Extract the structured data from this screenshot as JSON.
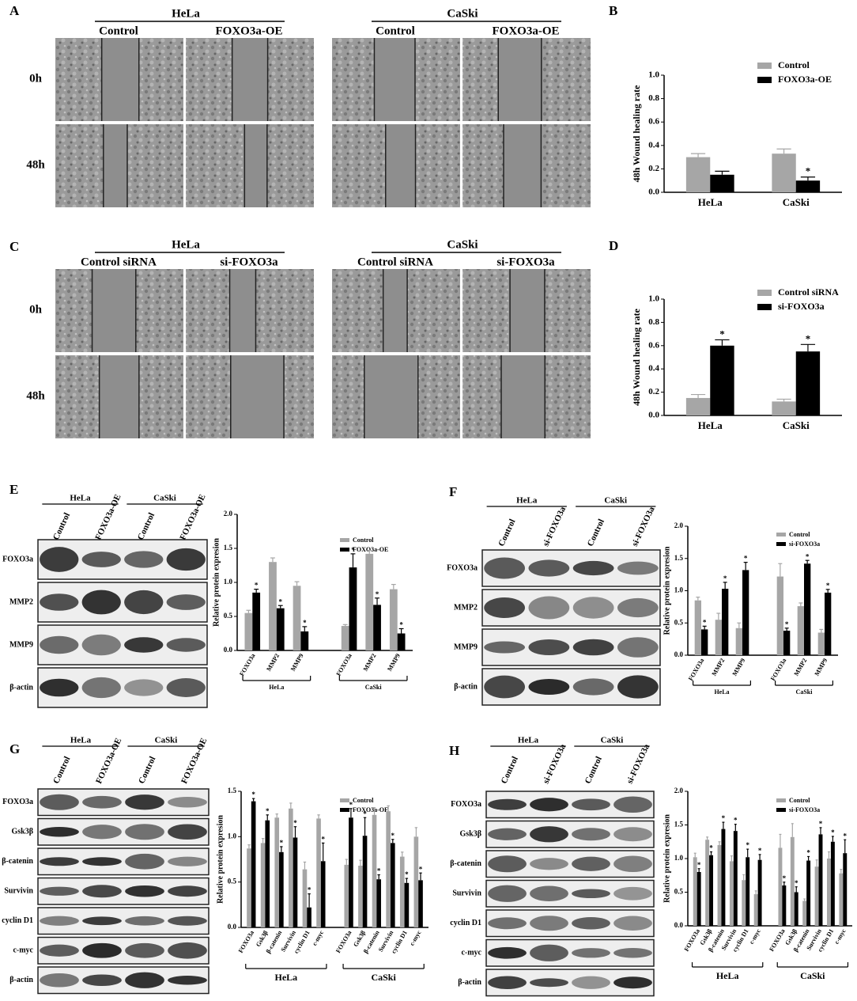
{
  "wound": [
    {
      "letter": "A",
      "rows": [
        "0h",
        "48h"
      ],
      "groups": [
        {
          "name": "HeLa",
          "conditions": [
            "Control",
            "FOXO3a-OE"
          ]
        },
        {
          "name": "CaSki",
          "conditions": [
            "Control",
            "FOXO3a-OE"
          ]
        }
      ]
    },
    {
      "letter": "C",
      "rows": [
        "0h",
        "48h"
      ],
      "groups": [
        {
          "name": "HeLa",
          "conditions": [
            "Control siRNA",
            "si-FOXO3a"
          ]
        },
        {
          "name": "CaSki",
          "conditions": [
            "Control siRNA",
            "si-FOXO3a"
          ]
        }
      ]
    }
  ],
  "blots": [
    {
      "letter": "E",
      "groups": [
        "HeLa",
        "CaSki"
      ],
      "lanes": [
        "Control",
        "FOXO3a-OE",
        "Control",
        "FOXO3a-OE"
      ],
      "rows": [
        "FOXO3a",
        "MMP2",
        "MMP9",
        "β-actin"
      ]
    },
    {
      "letter": "F",
      "groups": [
        "HeLa",
        "CaSki"
      ],
      "lanes": [
        "Control",
        "si-FOXO3a",
        "Control",
        "si-FOXO3a"
      ],
      "rows": [
        "FOXO3a",
        "MMP2",
        "MMP9",
        "β-actin"
      ]
    },
    {
      "letter": "G",
      "groups": [
        "HeLa",
        "CaSki"
      ],
      "lanes": [
        "Control",
        "FOXO3a-OE",
        "Control",
        "FOXO3a-OE"
      ],
      "rows": [
        "FOXO3a",
        "Gsk3β",
        "β-catenin",
        "Survivin",
        "cyclin D1",
        "c-myc",
        "β-actin"
      ]
    },
    {
      "letter": "H",
      "groups": [
        "HeLa",
        "CaSki"
      ],
      "lanes": [
        "Control",
        "si-FOXO3a",
        "Control",
        "si-FOXO3a"
      ],
      "rows": [
        "FOXO3a",
        "Gsk3β",
        "β-catenin",
        "Survivin",
        "cyclin D1",
        "c-myc",
        "β-actin"
      ]
    }
  ],
  "chart_data": [
    {
      "type": "bar",
      "panel": "B",
      "ylabel": "48h Wound healing rate",
      "categories": [
        "HeLa",
        "CaSki"
      ],
      "ylim": [
        0,
        1
      ],
      "yticks": [
        {
          "value": 0,
          "label": "0.0"
        },
        {
          "value": 0.2,
          "label": "0.2"
        },
        {
          "value": 0.4,
          "label": "0.4"
        },
        {
          "value": 0.6,
          "label": "0.6"
        },
        {
          "value": 0.8,
          "label": "0.8"
        },
        {
          "value": 1,
          "label": "1.0"
        }
      ],
      "series": [
        {
          "name": "Control",
          "color": "#a6a6a6",
          "values": [
            0.3,
            0.33
          ],
          "errors": [
            0.03,
            0.04
          ],
          "sig": [
            null,
            null
          ]
        },
        {
          "name": "FOXO3a-OE",
          "color": "#000000",
          "values": [
            0.15,
            0.1
          ],
          "errors": [
            0.03,
            0.03
          ],
          "sig": [
            null,
            "*"
          ]
        }
      ]
    },
    {
      "type": "bar",
      "panel": "D",
      "ylabel": "48h Wound healing rate",
      "categories": [
        "HeLa",
        "CaSki"
      ],
      "ylim": [
        0,
        1
      ],
      "yticks": [
        {
          "value": 0,
          "label": "0.0"
        },
        {
          "value": 0.2,
          "label": "0.2"
        },
        {
          "value": 0.4,
          "label": "0.4"
        },
        {
          "value": 0.6,
          "label": "0.6"
        },
        {
          "value": 0.8,
          "label": "0.8"
        },
        {
          "value": 1,
          "label": "1.0"
        }
      ],
      "series": [
        {
          "name": "Control siRNA",
          "color": "#a6a6a6",
          "values": [
            0.15,
            0.12
          ],
          "errors": [
            0.03,
            0.02
          ],
          "sig": [
            null,
            null
          ]
        },
        {
          "name": "si-FOXO3a",
          "color": "#000000",
          "values": [
            0.6,
            0.55
          ],
          "errors": [
            0.05,
            0.06
          ],
          "sig": [
            "*",
            "*"
          ]
        }
      ]
    },
    {
      "type": "bar",
      "ylabel": "Relative protein expresion",
      "groups": [
        "HeLa",
        "CaSki"
      ],
      "categories": [
        "FOXO3a",
        "MMP2",
        "MMP9",
        "FOXO3a",
        "MMP2",
        "MMP9"
      ],
      "ylim": [
        0,
        2
      ],
      "yticks": [
        {
          "value": 0,
          "label": "0.0"
        },
        {
          "value": 0.5,
          "label": "0.5"
        },
        {
          "value": 1,
          "label": "1.0"
        },
        {
          "value": 1.5,
          "label": "1.5"
        },
        {
          "value": 2,
          "label": "2.0"
        }
      ],
      "series": [
        {
          "name": "Control",
          "color": "#a6a6a6",
          "values": [
            0.55,
            1.3,
            0.95,
            0.36,
            1.42,
            0.9
          ],
          "errors": [
            0.04,
            0.06,
            0.06,
            0.02,
            0.05,
            0.07
          ],
          "sig": [
            null,
            null,
            null,
            null,
            null,
            null
          ]
        },
        {
          "name": "FOXO3a-OE",
          "color": "#000000",
          "values": [
            0.85,
            0.62,
            0.28,
            1.22,
            0.67,
            0.25
          ],
          "errors": [
            0.05,
            0.04,
            0.07,
            0.2,
            0.1,
            0.07
          ],
          "sig": [
            "*",
            "*",
            "*",
            "*",
            "*",
            "*"
          ]
        }
      ]
    },
    {
      "type": "bar",
      "ylabel": "Relative protein expresion",
      "groups": [
        "HeLa",
        "CaSki"
      ],
      "categories": [
        "FOXO3a",
        "MMP2",
        "MMP9",
        "FOXO3a",
        "MMP2",
        "MMP9"
      ],
      "ylim": [
        0,
        2
      ],
      "yticks": [
        {
          "value": 0,
          "label": "0.0"
        },
        {
          "value": 0.5,
          "label": "0.5"
        },
        {
          "value": 1,
          "label": "1.0"
        },
        {
          "value": 1.5,
          "label": "1.5"
        },
        {
          "value": 2,
          "label": "2.0"
        }
      ],
      "series": [
        {
          "name": "Control",
          "color": "#a6a6a6",
          "values": [
            0.85,
            0.55,
            0.42,
            1.22,
            0.76,
            0.35
          ],
          "errors": [
            0.05,
            0.1,
            0.08,
            0.2,
            0.05,
            0.05
          ],
          "sig": [
            null,
            null,
            null,
            null,
            null,
            null
          ]
        },
        {
          "name": "si-FOXO3a",
          "color": "#000000",
          "values": [
            0.4,
            1.03,
            1.32,
            0.38,
            1.42,
            0.97
          ],
          "errors": [
            0.05,
            0.1,
            0.12,
            0.04,
            0.05,
            0.05
          ],
          "sig": [
            "*",
            "*",
            "*",
            "*",
            "*",
            "*"
          ]
        }
      ]
    },
    {
      "type": "bar",
      "ylabel": "Relative protein expresion",
      "groups": [
        "HeLa",
        "CaSki"
      ],
      "categories": [
        "FOXO3a",
        "Gsk3β",
        "β-catenin",
        "Survivin",
        "cyclin D1",
        "c-myc",
        "FOXO3a",
        "Gsk3β",
        "β-catenin",
        "Survivin",
        "cyclin D1",
        "c-myc"
      ],
      "ylim": [
        0,
        1.5
      ],
      "yticks": [
        {
          "value": 0,
          "label": "0.0"
        },
        {
          "value": 0.5,
          "label": "0.5"
        },
        {
          "value": 1,
          "label": "1.0"
        },
        {
          "value": 1.5,
          "label": "1.5"
        }
      ],
      "series": [
        {
          "name": "Control",
          "color": "#a6a6a6",
          "values": [
            0.87,
            0.93,
            1.21,
            1.31,
            0.64,
            1.2,
            0.69,
            0.68,
            1.24,
            1.28,
            0.78,
            1.0
          ],
          "errors": [
            0.04,
            0.05,
            0.04,
            0.06,
            0.08,
            0.04,
            0.06,
            0.06,
            0.08,
            0.06,
            0.05,
            0.1
          ],
          "sig": [
            null,
            null,
            null,
            null,
            null,
            null,
            null,
            null,
            null,
            null,
            null,
            null
          ]
        },
        {
          "name": "FOXO3a-OE",
          "color": "#000000",
          "values": [
            1.39,
            1.18,
            0.83,
            0.99,
            0.22,
            0.73,
            1.21,
            1.01,
            0.53,
            0.93,
            0.49,
            0.52
          ],
          "errors": [
            0.03,
            0.06,
            0.06,
            0.12,
            0.15,
            0.2,
            0.1,
            0.2,
            0.05,
            0.04,
            0.05,
            0.08
          ],
          "sig": [
            "*",
            "*",
            "*",
            "*",
            "*",
            "*",
            "*",
            "*",
            "*",
            "*",
            "*",
            "*"
          ]
        }
      ]
    },
    {
      "type": "bar",
      "ylabel": "Relative protein expresion",
      "groups": [
        "HeLa",
        "CaSki"
      ],
      "categories": [
        "FOXO3a",
        "Gsk3β",
        "β-catenin",
        "Survivin",
        "cyclin D1",
        "c-myc",
        "FOXO3a",
        "Gsk3β",
        "β-catenin",
        "Survivin",
        "cyclin D1",
        "c-myc"
      ],
      "ylim": [
        0,
        2
      ],
      "yticks": [
        {
          "value": 0,
          "label": "0.0"
        },
        {
          "value": 0.5,
          "label": "0.5"
        },
        {
          "value": 1,
          "label": "1.0"
        },
        {
          "value": 1.5,
          "label": "1.5"
        },
        {
          "value": 2,
          "label": "2.0"
        }
      ],
      "series": [
        {
          "name": "Control",
          "color": "#a6a6a6",
          "values": [
            1.02,
            1.28,
            1.2,
            0.96,
            0.68,
            0.47,
            1.16,
            1.32,
            0.37,
            0.88,
            1.0,
            0.78
          ],
          "errors": [
            0.06,
            0.04,
            0.05,
            0.08,
            0.08,
            0.05,
            0.2,
            0.2,
            0.03,
            0.1,
            0.1,
            0.06
          ],
          "sig": [
            null,
            null,
            null,
            null,
            null,
            null,
            null,
            null,
            null,
            null,
            null,
            null
          ]
        },
        {
          "name": "si-FOXO3a",
          "color": "#000000",
          "values": [
            0.8,
            1.05,
            1.44,
            1.41,
            1.02,
            0.98,
            0.6,
            0.5,
            0.97,
            1.36,
            1.25,
            1.08
          ],
          "errors": [
            0.05,
            0.05,
            0.1,
            0.1,
            0.12,
            0.08,
            0.05,
            0.08,
            0.06,
            0.1,
            0.08,
            0.2
          ],
          "sig": [
            "*",
            "*",
            "*",
            "*",
            "*",
            "*",
            "*",
            "*",
            "*",
            "*",
            "*",
            "*"
          ]
        }
      ]
    }
  ]
}
